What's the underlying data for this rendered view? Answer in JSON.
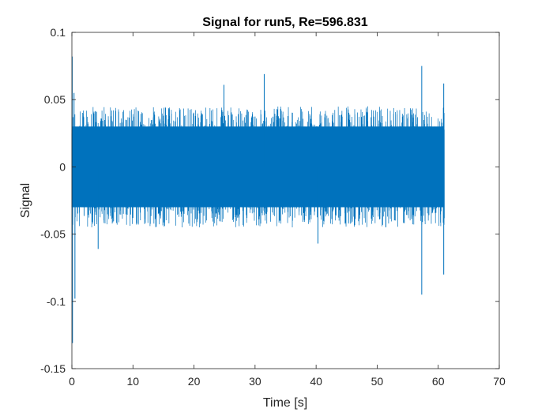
{
  "chart_data": {
    "type": "line",
    "title": "Signal for run5, Re=596.831",
    "xlabel": "Time [s]",
    "ylabel": "Signal",
    "xlim": [
      0,
      70
    ],
    "ylim": [
      -0.15,
      0.1
    ],
    "xticks": [
      0,
      10,
      20,
      30,
      40,
      50,
      60,
      70
    ],
    "yticks": [
      -0.15,
      -0.1,
      -0.05,
      0,
      0.05,
      0.1
    ],
    "xtick_labels": [
      "0",
      "10",
      "20",
      "30",
      "40",
      "50",
      "60",
      "70"
    ],
    "ytick_labels": [
      "-0.15",
      "-0.1",
      "-0.05",
      "0",
      "0.05",
      "0.1"
    ],
    "grid": false,
    "box": true,
    "series_color": "#0072BD",
    "signal": {
      "t_start": 0,
      "t_end": 61,
      "band_low": -0.03,
      "band_high": 0.03,
      "typical_peak_high": 0.045,
      "typical_peak_low": -0.045
    },
    "spikes": [
      {
        "x": 0.05,
        "y": 0.082
      },
      {
        "x": 0.1,
        "y": -0.131
      },
      {
        "x": 0.35,
        "y": 0.055
      },
      {
        "x": 0.5,
        "y": -0.098
      },
      {
        "x": 4.3,
        "y": -0.061
      },
      {
        "x": 24.9,
        "y": 0.061
      },
      {
        "x": 31.5,
        "y": 0.069
      },
      {
        "x": 40.3,
        "y": -0.057
      },
      {
        "x": 57.3,
        "y": 0.075
      },
      {
        "x": 57.3,
        "y": -0.095
      },
      {
        "x": 60.9,
        "y": 0.062
      },
      {
        "x": 60.9,
        "y": -0.08
      }
    ]
  }
}
